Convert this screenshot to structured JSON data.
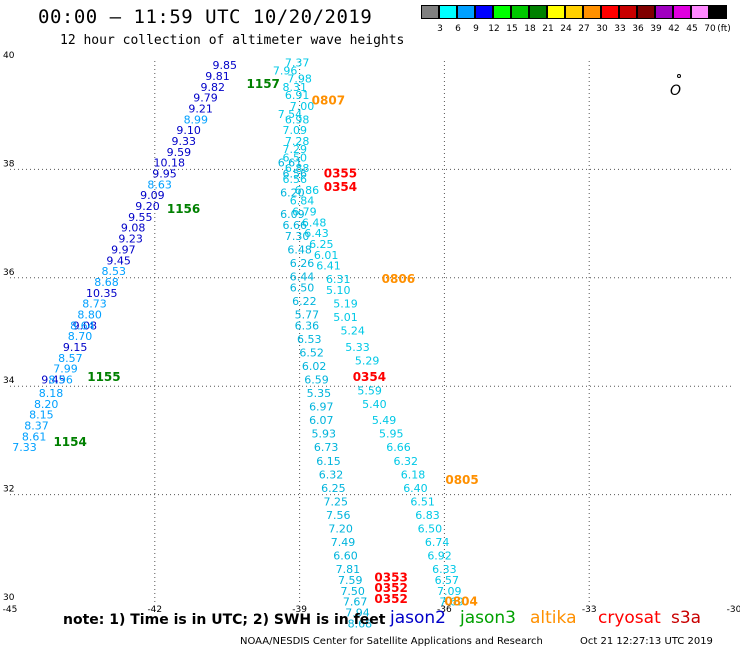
{
  "title": "00:00 – 11:59 UTC 10/20/2019",
  "subtitle": "12 hour collection of altimeter wave heights",
  "colorbar": {
    "unit": "(ft)",
    "bins": [
      {
        "label": "3",
        "color": "#808080"
      },
      {
        "label": "6",
        "color": "#00ffff"
      },
      {
        "label": "9",
        "color": "#00a0ff"
      },
      {
        "label": "12",
        "color": "#0000ff"
      },
      {
        "label": "15",
        "color": "#00ff00"
      },
      {
        "label": "18",
        "color": "#00c800"
      },
      {
        "label": "21",
        "color": "#008000"
      },
      {
        "label": "24",
        "color": "#ffff00"
      },
      {
        "label": "27",
        "color": "#ffd000"
      },
      {
        "label": "30",
        "color": "#ff9000"
      },
      {
        "label": "33",
        "color": "#ff0000"
      },
      {
        "label": "36",
        "color": "#c80000"
      },
      {
        "label": "39",
        "color": "#800000"
      },
      {
        "label": "42",
        "color": "#a000c0"
      },
      {
        "label": "45",
        "color": "#e000e0"
      },
      {
        "label": "70",
        "color": "#ff88ff"
      },
      {
        "label": "",
        "color": "#000000"
      }
    ]
  },
  "map": {
    "lon_range": [
      -45,
      -30
    ],
    "lat_range": [
      30,
      40
    ],
    "lon_ticks": [
      "-45",
      "-42",
      "-39",
      "-36",
      "-33",
      "-30"
    ],
    "lat_ticks": [
      "30",
      "32",
      "34",
      "36",
      "38",
      "40"
    ]
  },
  "passes": [
    {
      "label": "1154",
      "color": "#008000",
      "lon": -44.1,
      "lat": 32.9
    },
    {
      "label": "1155",
      "color": "#008000",
      "lon": -43.4,
      "lat": 34.1
    },
    {
      "label": "1156",
      "color": "#008000",
      "lon": -41.75,
      "lat": 37.2
    },
    {
      "label": "1157",
      "color": "#008000",
      "lon": -40.1,
      "lat": 39.5
    },
    {
      "label": "0807",
      "color": "#ff9000",
      "lon": -38.75,
      "lat": 39.2
    },
    {
      "label": "0806",
      "color": "#ff9000",
      "lon": -37.3,
      "lat": 35.9
    },
    {
      "label": "0805",
      "color": "#ff9000",
      "lon": -35.98,
      "lat": 32.2
    },
    {
      "label": "0804",
      "color": "#ff9000",
      "lon": -36.0,
      "lat": 29.95
    },
    {
      "label": "0355",
      "color": "#ff0000",
      "lon": -38.5,
      "lat": 37.85
    },
    {
      "label": "0354",
      "color": "#ff0000",
      "lon": -38.5,
      "lat": 37.6
    },
    {
      "label": "0354",
      "color": "#ff0000",
      "lon": -37.9,
      "lat": 34.1
    },
    {
      "label": "0353",
      "color": "#ff0000",
      "lon": -37.45,
      "lat": 30.4
    },
    {
      "label": "0352",
      "color": "#ff0000",
      "lon": -37.45,
      "lat": 30.2
    },
    {
      "label": "0352",
      "color": "#ff0000",
      "lon": -37.45,
      "lat": 30.0
    }
  ],
  "waves": {
    "jason2": {
      "color": "#0000c8",
      "points": [
        {
          "v": "9.85",
          "lon": -40.55,
          "lat": 39.85
        },
        {
          "v": "9.81",
          "lon": -40.7,
          "lat": 39.65
        },
        {
          "v": "9.82",
          "lon": -40.8,
          "lat": 39.45
        },
        {
          "v": "9.79",
          "lon": -40.95,
          "lat": 39.25
        },
        {
          "v": "9.21",
          "lon": -41.05,
          "lat": 39.05
        },
        {
          "v": "9.10",
          "lon": -41.3,
          "lat": 38.65
        },
        {
          "v": "9.33",
          "lon": -41.4,
          "lat": 38.45
        },
        {
          "v": "9.59",
          "lon": -41.5,
          "lat": 38.25
        },
        {
          "v": "10.18",
          "lon": -41.7,
          "lat": 38.05
        },
        {
          "v": "9.95",
          "lon": -41.8,
          "lat": 37.85
        },
        {
          "v": "9.09",
          "lon": -42.05,
          "lat": 37.45
        },
        {
          "v": "9.20",
          "lon": -42.15,
          "lat": 37.25
        },
        {
          "v": "9.55",
          "lon": -42.3,
          "lat": 37.05
        },
        {
          "v": "9.08",
          "lon": -42.45,
          "lat": 36.85
        },
        {
          "v": "9.23",
          "lon": -42.5,
          "lat": 36.65
        },
        {
          "v": "9.97",
          "lon": -42.65,
          "lat": 36.45
        },
        {
          "v": "9.45",
          "lon": -42.75,
          "lat": 36.25
        },
        {
          "v": "10.35",
          "lon": -43.1,
          "lat": 35.65
        },
        {
          "v": "9.08",
          "lon": -43.45,
          "lat": 35.05
        },
        {
          "v": "9.15",
          "lon": -43.65,
          "lat": 34.65
        },
        {
          "v": "9.45",
          "lon": -44.1,
          "lat": 34.05
        }
      ]
    },
    "jason3": {
      "color": "#00a0ff",
      "points": [
        {
          "v": "8.99",
          "lon": -41.15,
          "lat": 38.85
        },
        {
          "v": "8.63",
          "lon": -41.9,
          "lat": 37.65
        },
        {
          "v": "8.53",
          "lon": -42.85,
          "lat": 36.05
        },
        {
          "v": "8.68",
          "lon": -43.0,
          "lat": 35.85
        },
        {
          "v": "8.73",
          "lon": -43.25,
          "lat": 35.45
        },
        {
          "v": "8.80",
          "lon": -43.35,
          "lat": 35.25
        },
        {
          "v": "8.64",
          "lon": -43.5,
          "lat": 35.05
        },
        {
          "v": "8.70",
          "lon": -43.55,
          "lat": 34.85
        },
        {
          "v": "8.57",
          "lon": -43.75,
          "lat": 34.45
        },
        {
          "v": "7.99",
          "lon": -43.85,
          "lat": 34.25
        },
        {
          "v": "8.96",
          "lon": -43.95,
          "lat": 34.05
        },
        {
          "v": "8.18",
          "lon": -44.15,
          "lat": 33.8
        },
        {
          "v": "8.20",
          "lon": -44.25,
          "lat": 33.6
        },
        {
          "v": "8.15",
          "lon": -44.35,
          "lat": 33.4
        },
        {
          "v": "8.37",
          "lon": -44.45,
          "lat": 33.2
        },
        {
          "v": "8.61",
          "lon": -44.5,
          "lat": 33.0
        },
        {
          "v": "7.33",
          "lon": -44.7,
          "lat": 32.8
        }
      ]
    },
    "altika": {
      "color": "#00c8e6",
      "points": [
        {
          "v": "7.37",
          "lon": -39.05,
          "lat": 39.9
        },
        {
          "v": "7.96",
          "lon": -39.3,
          "lat": 39.75
        },
        {
          "v": "7.98",
          "lon": -39.0,
          "lat": 39.6
        },
        {
          "v": "8.31",
          "lon": -39.1,
          "lat": 39.45
        },
        {
          "v": "6.91",
          "lon": -39.05,
          "lat": 39.3
        },
        {
          "v": "7.00",
          "lon": -38.95,
          "lat": 39.1
        },
        {
          "v": "7.54",
          "lon": -39.2,
          "lat": 38.95
        },
        {
          "v": "6.98",
          "lon": -39.05,
          "lat": 38.85
        },
        {
          "v": "7.09",
          "lon": -39.1,
          "lat": 38.65
        },
        {
          "v": "7.28",
          "lon": -39.05,
          "lat": 38.45
        },
        {
          "v": "7.29",
          "lon": -39.1,
          "lat": 38.3
        },
        {
          "v": "6.50",
          "lon": -39.1,
          "lat": 38.15
        },
        {
          "v": "6.88",
          "lon": -39.05,
          "lat": 37.95
        },
        {
          "v": "6.56",
          "lon": -39.1,
          "lat": 37.75
        },
        {
          "v": "6.86",
          "lon": -38.85,
          "lat": 37.55
        },
        {
          "v": "6.84",
          "lon": -38.95,
          "lat": 37.35
        },
        {
          "v": "6.79",
          "lon": -38.9,
          "lat": 37.15
        },
        {
          "v": "6.48",
          "lon": -38.7,
          "lat": 36.95
        },
        {
          "v": "6.43",
          "lon": -38.65,
          "lat": 36.75
        },
        {
          "v": "6.25",
          "lon": -38.55,
          "lat": 36.55
        },
        {
          "v": "6.01",
          "lon": -38.45,
          "lat": 36.35
        },
        {
          "v": "6.41",
          "lon": -38.4,
          "lat": 36.15
        },
        {
          "v": "6.31",
          "lon": -38.2,
          "lat": 35.9
        },
        {
          "v": "5.10",
          "lon": -38.2,
          "lat": 35.7
        },
        {
          "v": "5.19",
          "lon": -38.05,
          "lat": 35.45
        },
        {
          "v": "5.01",
          "lon": -38.05,
          "lat": 35.2
        },
        {
          "v": "5.24",
          "lon": -37.9,
          "lat": 34.95
        },
        {
          "v": "5.33",
          "lon": -37.8,
          "lat": 34.65
        },
        {
          "v": "5.29",
          "lon": -37.6,
          "lat": 34.4
        },
        {
          "v": "5.59",
          "lon": -37.55,
          "lat": 33.85
        },
        {
          "v": "5.40",
          "lon": -37.45,
          "lat": 33.6
        },
        {
          "v": "5.49",
          "lon": -37.25,
          "lat": 33.3
        },
        {
          "v": "5.95",
          "lon": -37.1,
          "lat": 33.05
        },
        {
          "v": "6.66",
          "lon": -36.95,
          "lat": 32.8
        },
        {
          "v": "6.32",
          "lon": -36.8,
          "lat": 32.55
        },
        {
          "v": "6.18",
          "lon": -36.65,
          "lat": 32.3
        },
        {
          "v": "6.40",
          "lon": -36.6,
          "lat": 32.05
        },
        {
          "v": "6.51",
          "lon": -36.45,
          "lat": 31.8
        },
        {
          "v": "6.83",
          "lon": -36.35,
          "lat": 31.55
        },
        {
          "v": "6.50",
          "lon": -36.3,
          "lat": 31.3
        },
        {
          "v": "6.74",
          "lon": -36.15,
          "lat": 31.05
        },
        {
          "v": "6.92",
          "lon": -36.1,
          "lat": 30.8
        },
        {
          "v": "6.33",
          "lon": -36.0,
          "lat": 30.55
        },
        {
          "v": "6.57",
          "lon": -35.95,
          "lat": 30.35
        },
        {
          "v": "7.09",
          "lon": -35.9,
          "lat": 30.15
        },
        {
          "v": "7.69",
          "lon": -35.85,
          "lat": 29.95
        }
      ]
    },
    "cryosat": {
      "color": "#00b4dc",
      "points": [
        {
          "v": "6.61",
          "lon": -39.2,
          "lat": 38.05
        },
        {
          "v": "6.56",
          "lon": -39.1,
          "lat": 37.85
        },
        {
          "v": "6.20",
          "lon": -39.15,
          "lat": 37.5
        },
        {
          "v": "6.09",
          "lon": -39.15,
          "lat": 37.1
        },
        {
          "v": "6.66",
          "lon": -39.1,
          "lat": 36.9
        },
        {
          "v": "7.30",
          "lon": -39.05,
          "lat": 36.7
        },
        {
          "v": "6.48",
          "lon": -39.0,
          "lat": 36.45
        },
        {
          "v": "6.26",
          "lon": -38.95,
          "lat": 36.2
        },
        {
          "v": "6.44",
          "lon": -38.95,
          "lat": 35.95
        },
        {
          "v": "6.50",
          "lon": -38.95,
          "lat": 35.75
        },
        {
          "v": "6.22",
          "lon": -38.9,
          "lat": 35.5
        },
        {
          "v": "5.77",
          "lon": -38.85,
          "lat": 35.25
        },
        {
          "v": "6.36",
          "lon": -38.85,
          "lat": 35.05
        },
        {
          "v": "6.53",
          "lon": -38.8,
          "lat": 34.8
        },
        {
          "v": "6.52",
          "lon": -38.75,
          "lat": 34.55
        },
        {
          "v": "6.02",
          "lon": -38.7,
          "lat": 34.3
        },
        {
          "v": "6.59",
          "lon": -38.65,
          "lat": 34.05
        },
        {
          "v": "5.35",
          "lon": -38.6,
          "lat": 33.8
        },
        {
          "v": "6.97",
          "lon": -38.55,
          "lat": 33.55
        },
        {
          "v": "6.07",
          "lon": -38.55,
          "lat": 33.3
        },
        {
          "v": "5.93",
          "lon": -38.5,
          "lat": 33.05
        },
        {
          "v": "6.73",
          "lon": -38.45,
          "lat": 32.8
        },
        {
          "v": "6.15",
          "lon": -38.4,
          "lat": 32.55
        },
        {
          "v": "6.32",
          "lon": -38.35,
          "lat": 32.3
        },
        {
          "v": "6.25",
          "lon": -38.3,
          "lat": 32.05
        },
        {
          "v": "7.25",
          "lon": -38.25,
          "lat": 31.8
        },
        {
          "v": "7.56",
          "lon": -38.2,
          "lat": 31.55
        },
        {
          "v": "7.20",
          "lon": -38.15,
          "lat": 31.3
        },
        {
          "v": "7.49",
          "lon": -38.1,
          "lat": 31.05
        },
        {
          "v": "6.60",
          "lon": -38.05,
          "lat": 30.8
        },
        {
          "v": "7.81",
          "lon": -38.0,
          "lat": 30.55
        },
        {
          "v": "7.59",
          "lon": -37.95,
          "lat": 30.35
        },
        {
          "v": "7.50",
          "lon": -37.9,
          "lat": 30.15
        },
        {
          "v": "7.67",
          "lon": -37.85,
          "lat": 29.95
        },
        {
          "v": "7.94",
          "lon": -37.8,
          "lat": 29.75
        },
        {
          "v": "8.68",
          "lon": -37.75,
          "lat": 29.55
        }
      ]
    }
  },
  "note": "note:  1) Time is in UTC;  2) SWH is in feet",
  "satellites": [
    {
      "name": "jason2",
      "color": "#0000c8"
    },
    {
      "name": "jason3",
      "color": "#00a000"
    },
    {
      "name": "altika",
      "color": "#ff9000"
    },
    {
      "name": "cryosat",
      "color": "#ff0000"
    },
    {
      "name": "s3a",
      "color": "#c80000"
    }
  ],
  "footer_left": "NOAA/NESDIS Center for Satellite Applications and Research",
  "footer_right": "Oct 21 12:27:13 UTC 2019",
  "island_label": "O"
}
